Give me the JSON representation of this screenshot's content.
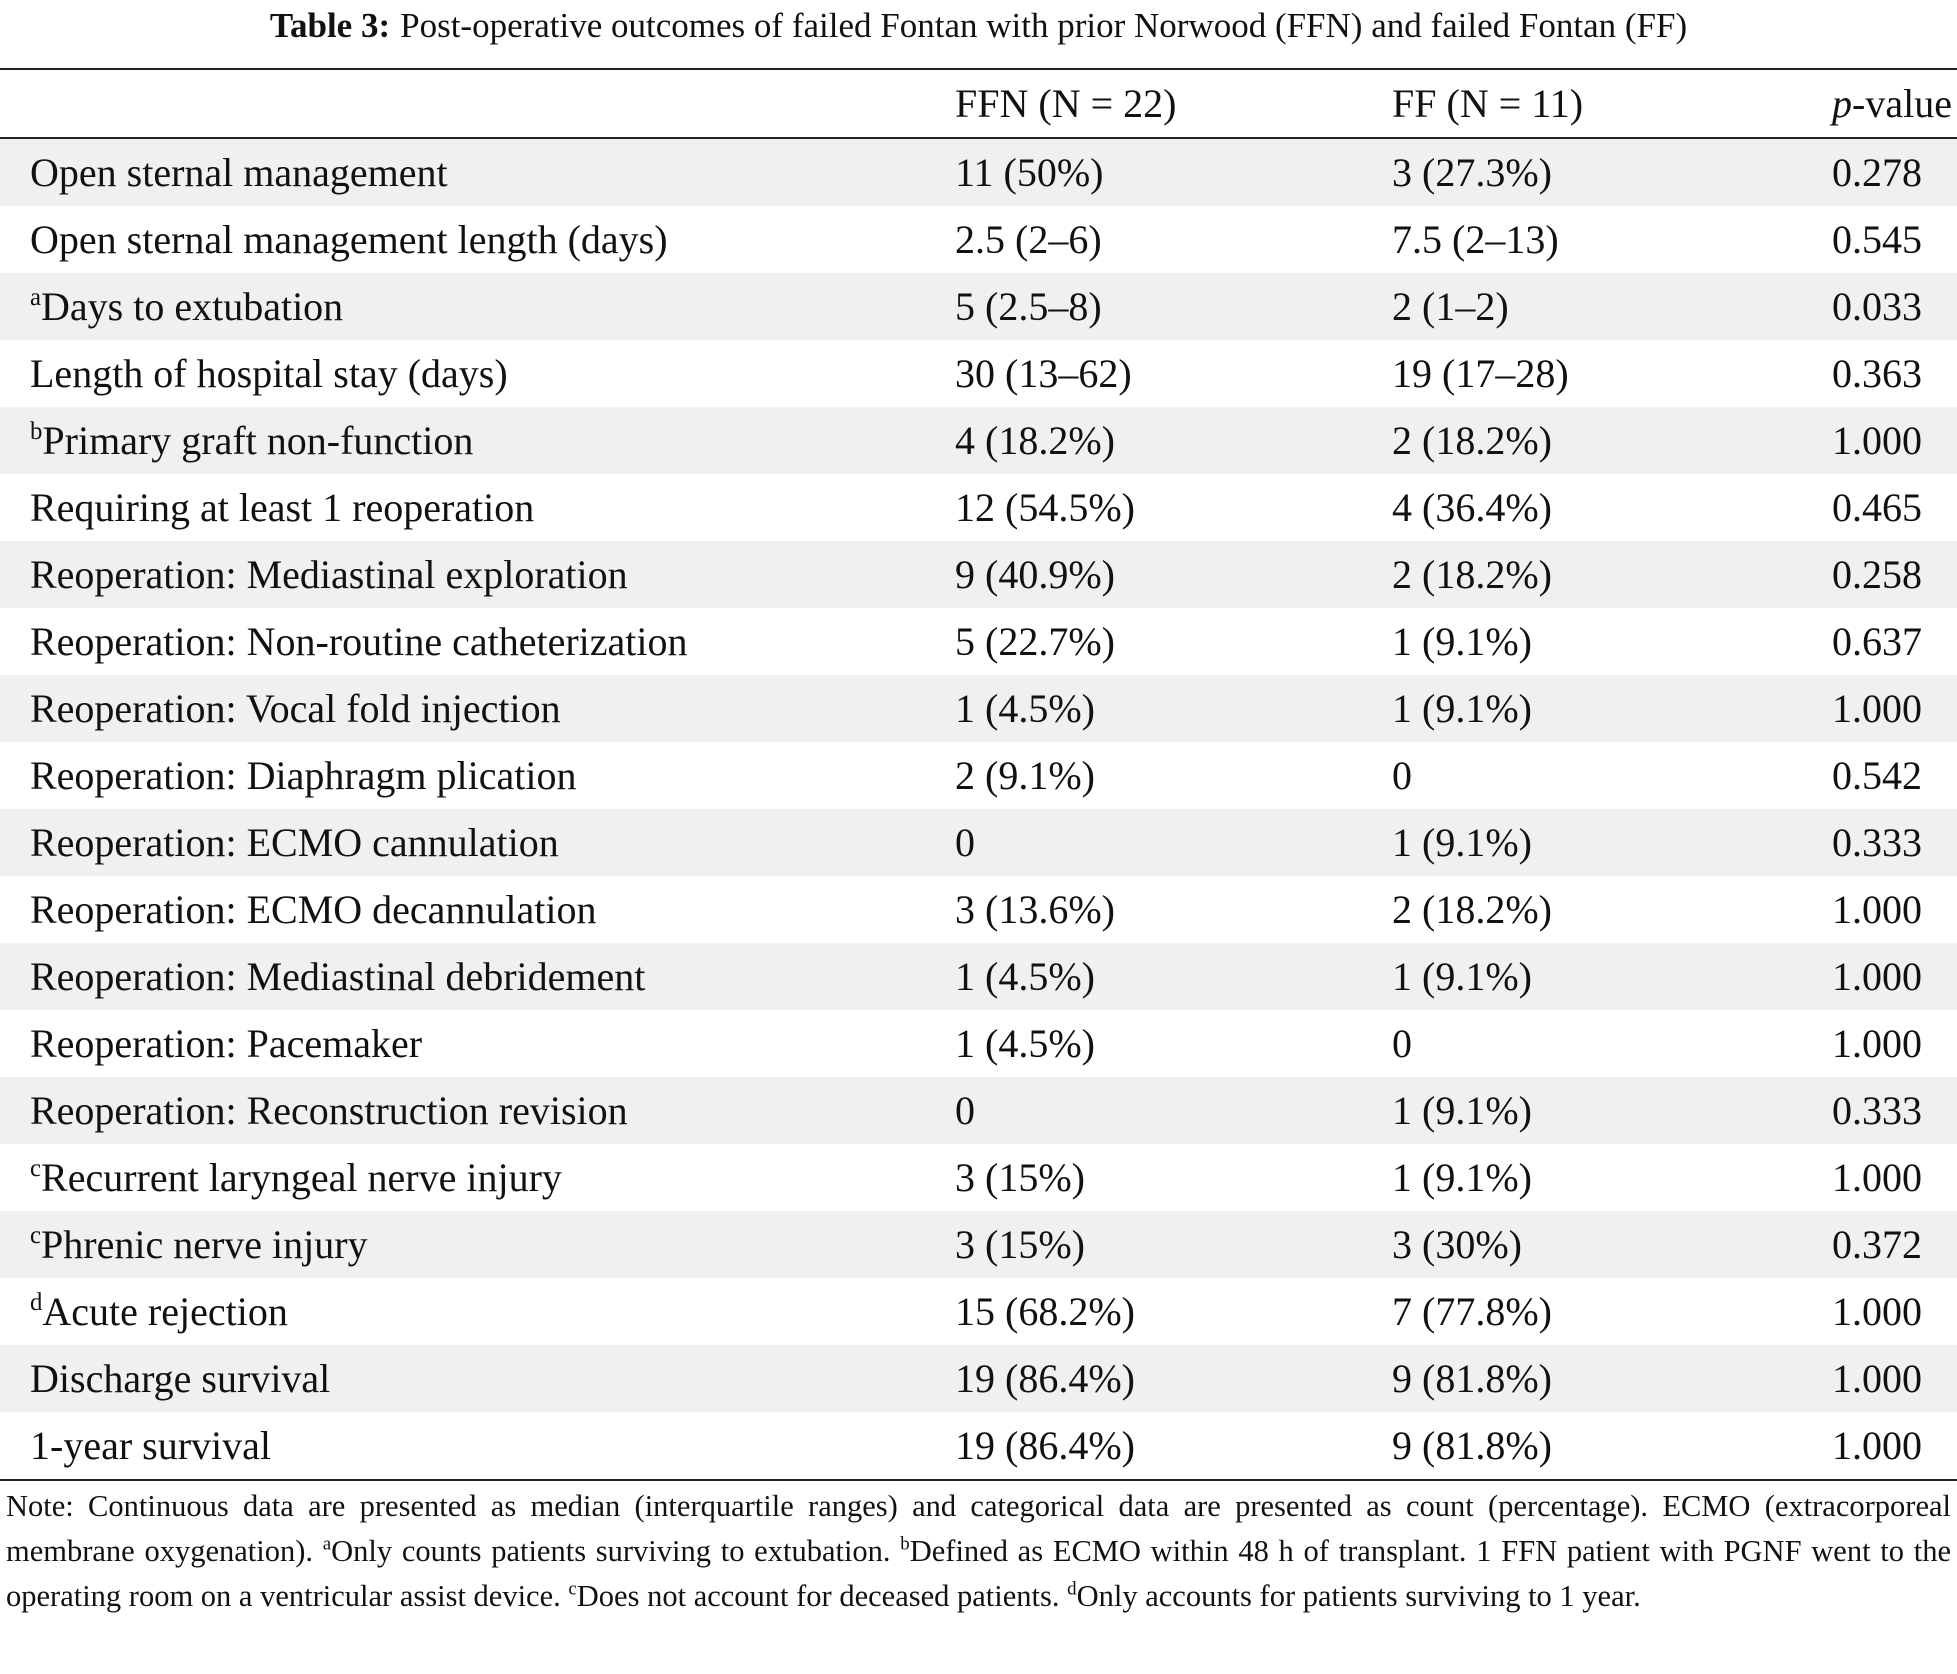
{
  "caption": {
    "label": "Table 3:",
    "text": "Post-operative outcomes of failed Fontan with prior Norwood (FFN) and failed Fontan (FF)"
  },
  "table": {
    "header": [
      "FFN (N = 22)",
      "FF (N = 11)",
      {
        "italic": "p",
        "text": "-value"
      }
    ],
    "rows": [
      {
        "label": "Open sternal management",
        "cells": [
          "11 (50%)",
          "3 (27.3%)",
          "0.278"
        ]
      },
      {
        "label": "Open sternal management length (days)",
        "cells": [
          "2.5 (2–6)",
          "7.5 (2–13)",
          "0.545"
        ]
      },
      {
        "mark": "a",
        "label": "Days to extubation",
        "cells": [
          "5 (2.5–8)",
          "2 (1–2)",
          "0.033"
        ]
      },
      {
        "label": "Length of hospital stay (days)",
        "cells": [
          "30 (13–62)",
          "19 (17–28)",
          "0.363"
        ]
      },
      {
        "mark": "b",
        "label": "Primary graft non-function",
        "cells": [
          "4 (18.2%)",
          "2 (18.2%)",
          "1.000"
        ]
      },
      {
        "label": "Requiring at least 1 reoperation",
        "cells": [
          "12 (54.5%)",
          "4 (36.4%)",
          "0.465"
        ]
      },
      {
        "label": "Reoperation: Mediastinal exploration",
        "cells": [
          "9 (40.9%)",
          "2 (18.2%)",
          "0.258"
        ]
      },
      {
        "label": "Reoperation: Non-routine catheterization",
        "cells": [
          "5 (22.7%)",
          "1 (9.1%)",
          "0.637"
        ]
      },
      {
        "label": "Reoperation: Vocal fold injection",
        "cells": [
          "1 (4.5%)",
          "1 (9.1%)",
          "1.000"
        ]
      },
      {
        "label": "Reoperation: Diaphragm plication",
        "cells": [
          "2 (9.1%)",
          "0",
          "0.542"
        ]
      },
      {
        "label": "Reoperation: ECMO cannulation",
        "cells": [
          "0",
          "1 (9.1%)",
          "0.333"
        ]
      },
      {
        "label": "Reoperation: ECMO decannulation",
        "cells": [
          "3 (13.6%)",
          "2 (18.2%)",
          "1.000"
        ]
      },
      {
        "label": "Reoperation: Mediastinal debridement",
        "cells": [
          "1 (4.5%)",
          "1 (9.1%)",
          "1.000"
        ]
      },
      {
        "label": "Reoperation: Pacemaker",
        "cells": [
          "1 (4.5%)",
          "0",
          "1.000"
        ]
      },
      {
        "label": "Reoperation: Reconstruction revision",
        "cells": [
          "0",
          "1 (9.1%)",
          "0.333"
        ]
      },
      {
        "mark": "c",
        "label": "Recurrent laryngeal nerve injury",
        "cells": [
          "3 (15%)",
          "1 (9.1%)",
          "1.000"
        ]
      },
      {
        "mark": "c",
        "label": "Phrenic nerve injury",
        "cells": [
          "3 (15%)",
          "3 (30%)",
          "0.372"
        ]
      },
      {
        "mark": "d",
        "label": "Acute rejection",
        "cells": [
          "15 (68.2%)",
          "7 (77.8%)",
          "1.000"
        ]
      },
      {
        "label": "Discharge survival",
        "cells": [
          "19 (86.4%)",
          "9 (81.8%)",
          "1.000"
        ]
      },
      {
        "label": "1-year survival",
        "cells": [
          "19 (86.4%)",
          "9 (81.8%)",
          "1.000"
        ]
      }
    ]
  },
  "note": [
    {
      "text": "Note: Continuous data are presented as median (interquartile ranges) and categorical data are presented as count (percentage). ECMO (extracorporeal membrane oxygenation). "
    },
    {
      "sup": "a"
    },
    {
      "text": "Only counts patients surviving to extubation. "
    },
    {
      "sup": "b"
    },
    {
      "text": "Defined as ECMO within 48 h of transplant. 1 FFN patient with PGNF went to the operating room on a ventricular assist device. "
    },
    {
      "sup": "c"
    },
    {
      "text": "Does not account for deceased patients. "
    },
    {
      "sup": "d"
    },
    {
      "text": "Only accounts for patients surviving to 1 year."
    }
  ]
}
